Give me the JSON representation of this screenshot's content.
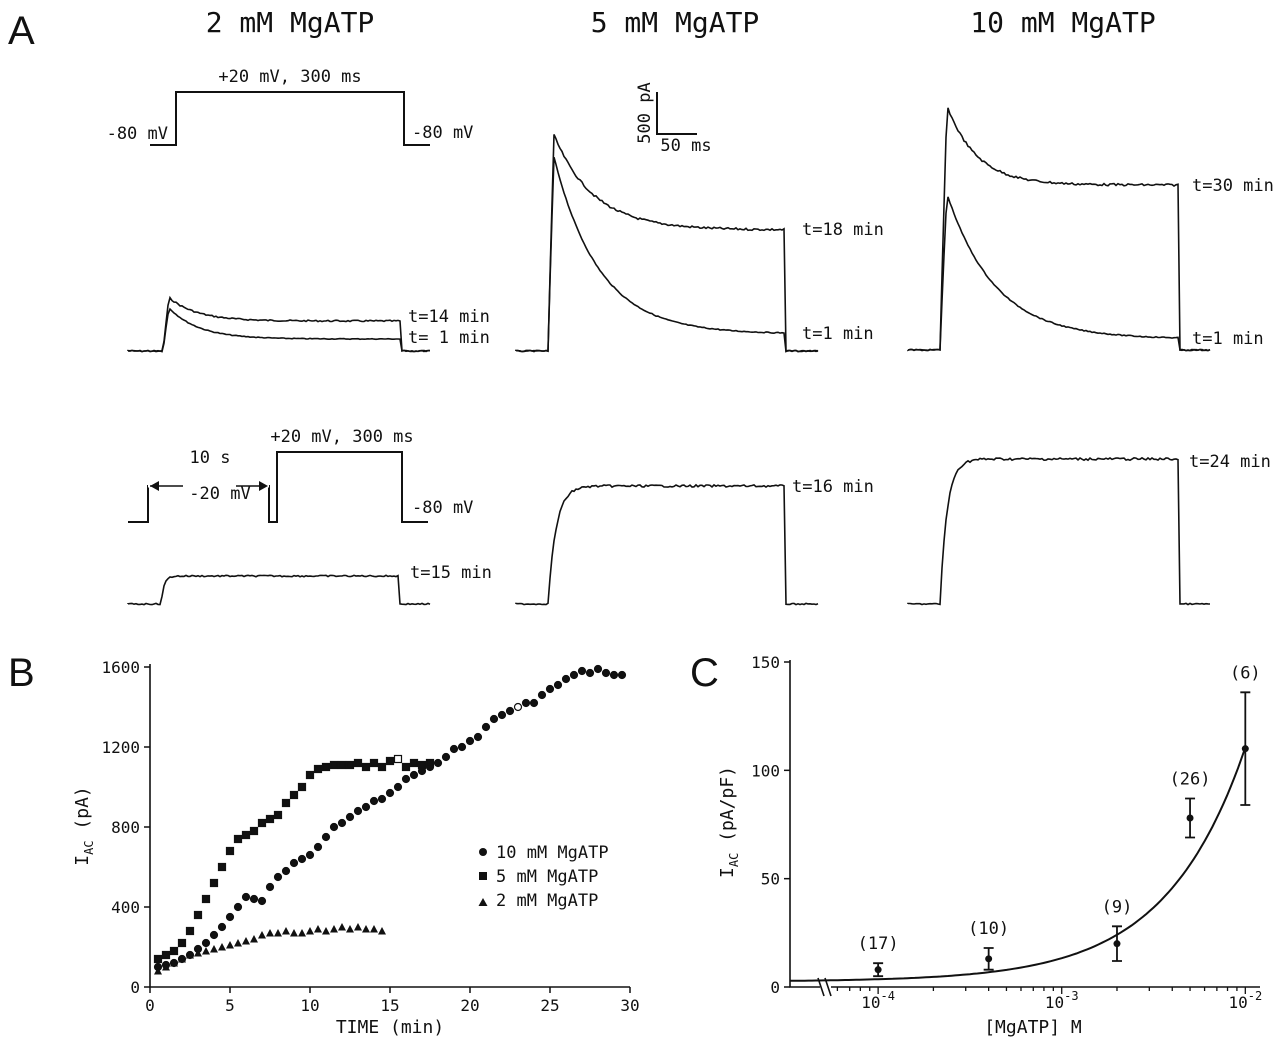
{
  "panels": {
    "A": {
      "letter": "A",
      "columns": [
        {
          "title": "2 mM MgATP",
          "top_traces": [
            "t=14 min",
            "t= 1 min"
          ],
          "protocol": {
            "step": "+20 mV, 300 ms",
            "hold_left": "-80 mV",
            "hold_right": "-80 mV"
          },
          "bottom_trace": "t=15 min",
          "bottom_protocol": {
            "step": "+20 mV, 300 ms",
            "prepulse_time": "10 s",
            "prepulse_voltage": "-20 mV",
            "hold_right": "-80 mV"
          }
        },
        {
          "title": "5 mM MgATP",
          "top_traces": [
            "t=18 min",
            "t=1 min"
          ],
          "bottom_trace": "t=16 min",
          "scale_bar": {
            "current": "500 pA",
            "time": "50 ms"
          }
        },
        {
          "title": "10 mM MgATP",
          "top_traces": [
            "t=30 min",
            "t=1 min"
          ],
          "bottom_trace": "t=24 min"
        }
      ]
    },
    "B": {
      "letter": "B",
      "legend": [
        "10 mM MgATP",
        "5 mM MgATP",
        "2 mM MgATP"
      ]
    },
    "C": {
      "letter": "C",
      "n_labels": [
        "(17)",
        "(10)",
        "(9)",
        "(26)",
        "(6)"
      ]
    }
  },
  "chart_data": [
    {
      "type": "scatter",
      "panel": "B",
      "xlabel": "TIME (min)",
      "ylabel": "I_AC (pA)",
      "ylabel_main": "I",
      "ylabel_sub": "AC",
      "ylabel_unit": " (pA)",
      "xlim": [
        0,
        30
      ],
      "ylim": [
        0,
        1600
      ],
      "xticks": [
        0,
        5,
        10,
        15,
        20,
        25,
        30
      ],
      "yticks": [
        0,
        400,
        800,
        1200,
        1600
      ],
      "series": [
        {
          "name": "10 mM MgATP",
          "marker": "circle",
          "x": [
            0.5,
            1,
            1.5,
            2,
            2.5,
            3,
            3.5,
            4,
            4.5,
            5,
            5.5,
            6,
            6.5,
            7,
            7.5,
            8,
            8.5,
            9,
            9.5,
            10,
            10.5,
            11,
            11.5,
            12,
            12.5,
            13,
            13.5,
            14,
            14.5,
            15,
            15.5,
            16,
            16.5,
            17,
            17.5,
            18,
            18.5,
            19,
            19.5,
            20,
            20.5,
            21,
            21.5,
            22,
            22.5,
            23,
            23.5,
            24,
            24.5,
            25,
            25.5,
            26,
            26.5,
            27,
            27.5,
            28,
            28.5,
            29,
            29.5
          ],
          "y": [
            100,
            110,
            120,
            140,
            160,
            190,
            220,
            260,
            300,
            350,
            400,
            450,
            440,
            430,
            500,
            550,
            580,
            620,
            640,
            660,
            700,
            750,
            800,
            820,
            850,
            880,
            900,
            930,
            940,
            970,
            1000,
            1040,
            1060,
            1080,
            1100,
            1120,
            1150,
            1190,
            1200,
            1230,
            1250,
            1300,
            1340,
            1360,
            1380,
            1400,
            1420,
            1420,
            1460,
            1490,
            1510,
            1540,
            1560,
            1580,
            1570,
            1590,
            1570,
            1560,
            1560
          ],
          "open": [
            null,
            null,
            null,
            null,
            null,
            null,
            null,
            null,
            null,
            null,
            null,
            null,
            null,
            null,
            null,
            null,
            null,
            null,
            null,
            null,
            null,
            null,
            null,
            null,
            null,
            null,
            null,
            null,
            null,
            null,
            null,
            null,
            null,
            null,
            null,
            null,
            null,
            null,
            null,
            null,
            null,
            null,
            null,
            null,
            null,
            1,
            null,
            null,
            null,
            null,
            null,
            null,
            null,
            null,
            null,
            null,
            null,
            null,
            null
          ]
        },
        {
          "name": "5 mM MgATP",
          "marker": "square",
          "x": [
            0.5,
            1,
            1.5,
            2,
            2.5,
            3,
            3.5,
            4,
            4.5,
            5,
            5.5,
            6,
            6.5,
            7,
            7.5,
            8,
            8.5,
            9,
            9.5,
            10,
            10.5,
            11,
            11.5,
            12,
            12.5,
            13,
            13.5,
            14,
            14.5,
            15,
            15.5,
            16,
            16.5,
            17,
            17.5
          ],
          "y": [
            140,
            160,
            180,
            220,
            280,
            360,
            440,
            520,
            600,
            680,
            740,
            760,
            780,
            820,
            840,
            860,
            920,
            960,
            1000,
            1060,
            1090,
            1100,
            1110,
            1110,
            1110,
            1120,
            1100,
            1120,
            1100,
            1130,
            1140,
            1100,
            1120,
            1110,
            1120
          ],
          "open": [
            null,
            null,
            null,
            null,
            null,
            null,
            null,
            null,
            null,
            null,
            null,
            null,
            null,
            null,
            null,
            null,
            null,
            null,
            null,
            null,
            null,
            null,
            null,
            null,
            null,
            null,
            null,
            null,
            null,
            null,
            1,
            null,
            null,
            null,
            null
          ]
        },
        {
          "name": "2 mM MgATP",
          "marker": "triangle",
          "x": [
            0.5,
            1,
            1.5,
            2,
            2.5,
            3,
            3.5,
            4,
            4.5,
            5,
            5.5,
            6,
            6.5,
            7,
            7.5,
            8,
            8.5,
            9,
            9.5,
            10,
            10.5,
            11,
            11.5,
            12,
            12.5,
            13,
            13.5,
            14,
            14.5
          ],
          "y": [
            80,
            100,
            120,
            140,
            160,
            170,
            180,
            190,
            200,
            210,
            220,
            230,
            240,
            260,
            270,
            270,
            280,
            270,
            270,
            280,
            290,
            280,
            290,
            300,
            290,
            300,
            290,
            290,
            280
          ]
        }
      ]
    },
    {
      "type": "scatter",
      "panel": "C",
      "xlabel": "[MgATP] M",
      "ylabel": "I_AC (pA/pF)",
      "ylabel_main": "I",
      "ylabel_sub": "AC",
      "ylabel_unit": " (pA/pF)",
      "xscale": "log",
      "xlim_log10": [
        -4.48,
        -1.92
      ],
      "axis_break_log10": -4.28,
      "ylim": [
        0,
        150
      ],
      "yticks": [
        0,
        50,
        100,
        150
      ],
      "xticks_log10": [
        -4,
        -3,
        -2
      ],
      "xtick_labels": [
        "10",
        "10",
        "10"
      ],
      "xtick_exponents": [
        "-4",
        "-3",
        "-2"
      ],
      "points": [
        {
          "x": 0.0001,
          "y": 8,
          "err": 3,
          "n": "(17)"
        },
        {
          "x": 0.0004,
          "y": 13,
          "err": 5,
          "n": "(10)"
        },
        {
          "x": 0.002,
          "y": 20,
          "err": 8,
          "n": "(9)"
        },
        {
          "x": 0.005,
          "y": 78,
          "err": 9,
          "n": "(26)"
        },
        {
          "x": 0.01,
          "y": 110,
          "err": 26,
          "n": "(6)"
        }
      ],
      "fit": {
        "baseline": 2.5,
        "slope_per_molar": 10800
      }
    }
  ]
}
